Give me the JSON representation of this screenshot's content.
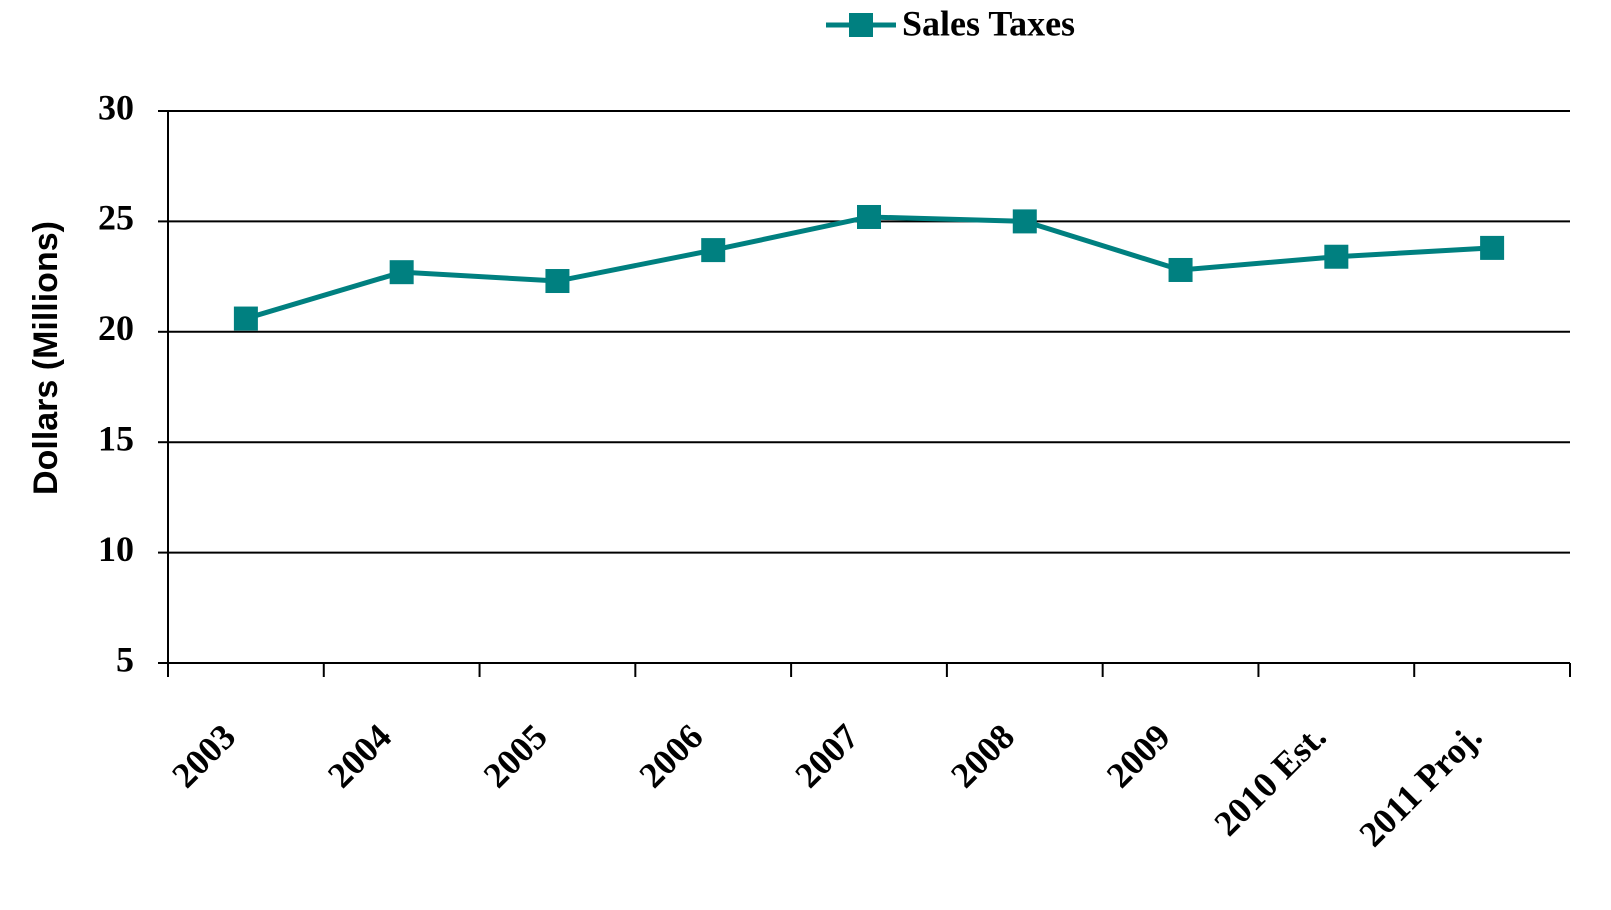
{
  "chart_data": {
    "type": "line",
    "categories": [
      "2003",
      "2004",
      "2005",
      "2006",
      "2007",
      "2008",
      "2009",
      "2010 Est.",
      "2011 Proj."
    ],
    "series": [
      {
        "name": "Sales Taxes",
        "color": "#008080",
        "values": [
          20.6,
          22.7,
          22.3,
          23.7,
          25.2,
          25.0,
          22.8,
          23.4,
          23.8
        ]
      }
    ],
    "y_label": "Dollars (Millions)",
    "ylim": [
      5,
      30
    ],
    "yticks": [
      5,
      10,
      15,
      20,
      25,
      30
    ],
    "grid": true,
    "legend": "top"
  }
}
